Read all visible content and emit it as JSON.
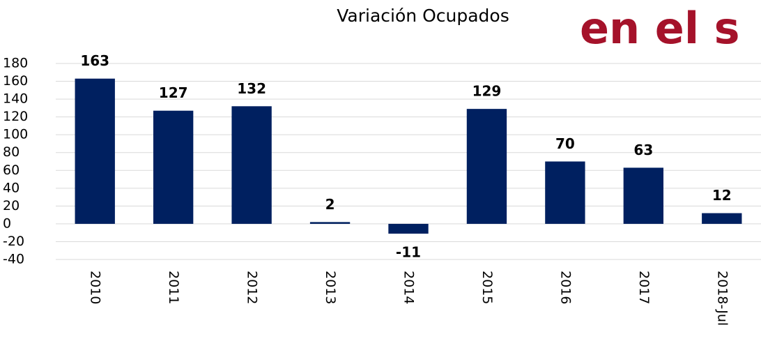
{
  "logo_text": "en el s",
  "chart_data": {
    "type": "bar",
    "title": "Variación Ocupados",
    "categories": [
      "2010",
      "2011",
      "2012",
      "2013",
      "2014",
      "2015",
      "2016",
      "2017",
      "2018-Jul"
    ],
    "values": [
      163,
      127,
      132,
      2,
      -11,
      129,
      70,
      63,
      12
    ],
    "color": "#002060",
    "ylim": [
      -40,
      180
    ],
    "yticks": [
      -40,
      -20,
      0,
      20,
      40,
      60,
      80,
      100,
      120,
      140,
      160,
      180
    ],
    "grid": true
  }
}
